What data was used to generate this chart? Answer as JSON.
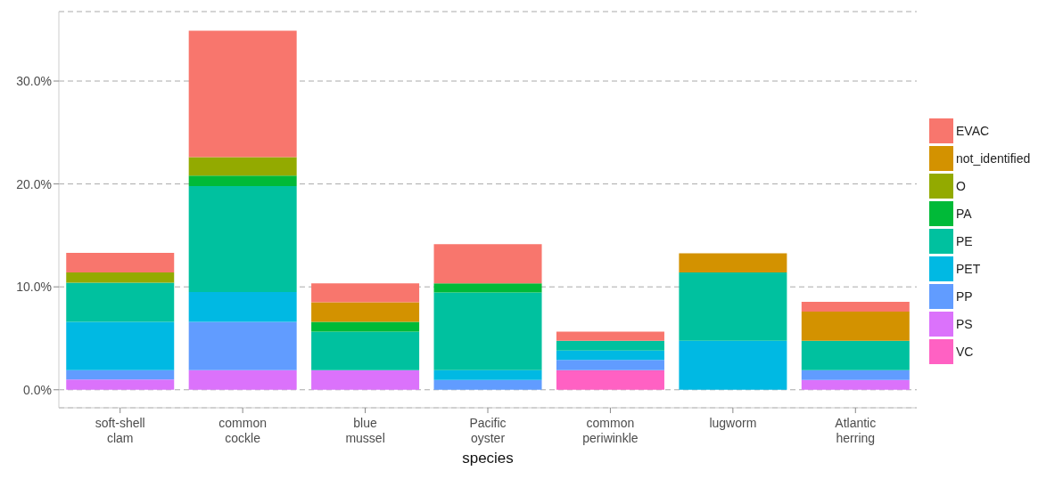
{
  "chart_data": {
    "type": "bar",
    "stacked": true,
    "xlabel": "species",
    "categories": [
      "soft-shell clam",
      "common cockle",
      "blue mussel",
      "Pacific oyster",
      "common periwinkle",
      "lugworm",
      "Atlantic herring"
    ],
    "series": [
      {
        "name": "VC",
        "color": "#ff61c3",
        "values": [
          0,
          0,
          0,
          0,
          1.9,
          0,
          0
        ]
      },
      {
        "name": "PS",
        "color": "#db72fb",
        "values": [
          1.0,
          1.9,
          1.9,
          0,
          0,
          0,
          0.95
        ]
      },
      {
        "name": "PP",
        "color": "#619cff",
        "values": [
          0.9,
          4.7,
          0,
          0.95,
          1.0,
          0,
          0.95
        ]
      },
      {
        "name": "PET",
        "color": "#00b9e3",
        "values": [
          4.7,
          2.9,
          0,
          0.95,
          0.9,
          4.75,
          0
        ]
      },
      {
        "name": "PE",
        "color": "#00c19f",
        "values": [
          3.8,
          10.3,
          3.75,
          7.55,
          0.95,
          6.65,
          2.85
        ]
      },
      {
        "name": "PA",
        "color": "#00ba38",
        "values": [
          0,
          1.0,
          0.95,
          0.9,
          0,
          0,
          0
        ]
      },
      {
        "name": "O",
        "color": "#93aa00",
        "values": [
          1.0,
          1.8,
          0,
          0,
          0,
          0,
          0
        ]
      },
      {
        "name": "not_identified",
        "color": "#d39200",
        "values": [
          0,
          0,
          1.9,
          0,
          0,
          1.85,
          2.85
        ]
      },
      {
        "name": "EVAC",
        "color": "#f8766d",
        "values": [
          1.9,
          12.3,
          1.85,
          3.8,
          0.9,
          0,
          0.95
        ]
      }
    ],
    "ylim": [
      -1.75,
      36.75
    ],
    "yticks": [
      {
        "value": 0,
        "label": "0.0%"
      },
      {
        "value": 10,
        "label": "10.0%"
      },
      {
        "value": 20,
        "label": "20.0%"
      },
      {
        "value": 30,
        "label": "30.0%"
      }
    ],
    "grid": "y",
    "line_style": "dashed",
    "legend": "right"
  }
}
